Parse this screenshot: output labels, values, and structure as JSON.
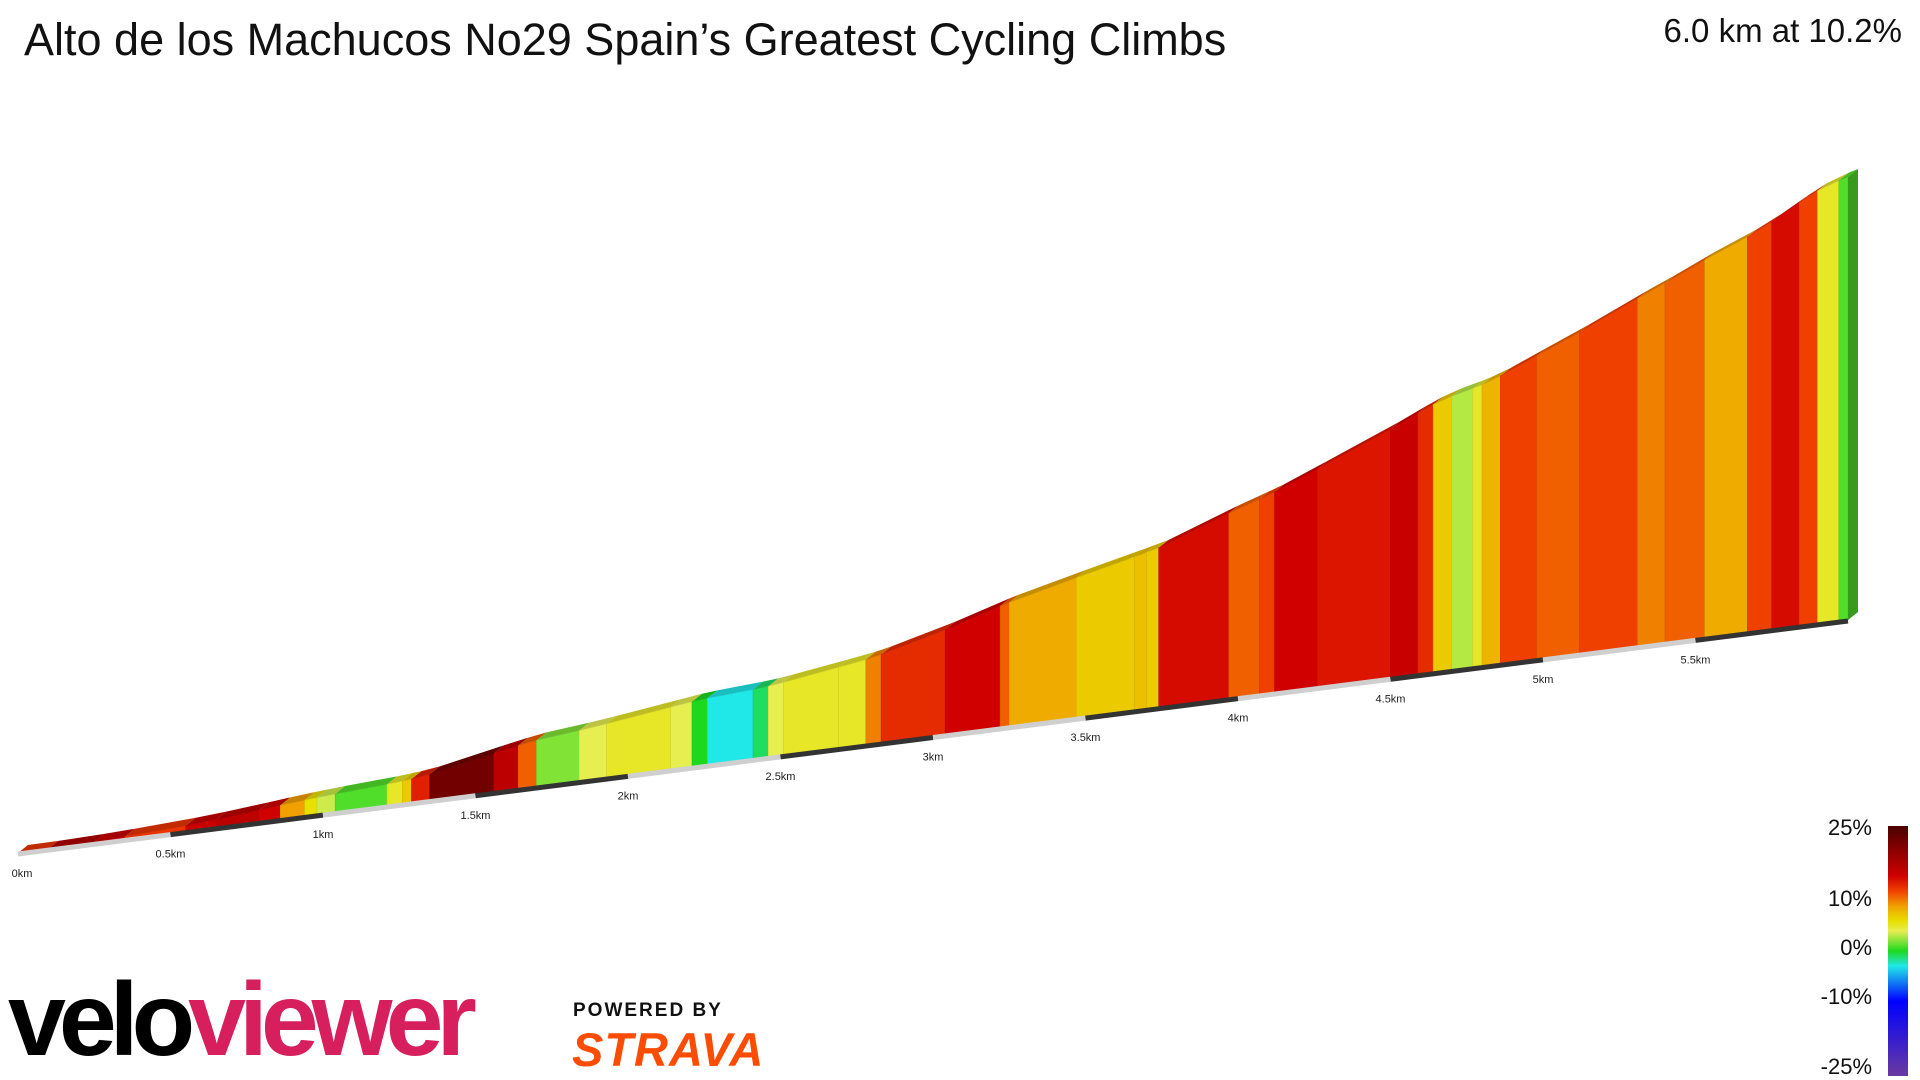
{
  "header": {
    "title": "Alto de los Machucos No29 Spain’s Greatest Cycling Climbs",
    "summary": "6.0 km at 10.2%"
  },
  "chart_data": {
    "type": "area",
    "title": "Alto de los Machucos No29 Spain’s Greatest Cycling Climbs",
    "xlabel": "",
    "ylabel": "",
    "x_unit": "km",
    "distance_km": 6.0,
    "avg_gradient_pct": 10.2,
    "xlim": [
      0,
      6.0
    ],
    "x_ticks": [
      "0km",
      "0.5km",
      "1km",
      "1.5km",
      "2km",
      "2.5km",
      "3km",
      "3.5km",
      "4km",
      "4.5km",
      "5km",
      "5.5km"
    ],
    "segments": [
      {
        "start": 0.0,
        "end": 0.1,
        "gradient": 12.5
      },
      {
        "start": 0.1,
        "end": 0.25,
        "gradient": 17.5
      },
      {
        "start": 0.25,
        "end": 0.35,
        "gradient": 15.5
      },
      {
        "start": 0.35,
        "end": 0.55,
        "gradient": 12.5
      },
      {
        "start": 0.55,
        "end": 0.65,
        "gradient": 15.5
      },
      {
        "start": 0.65,
        "end": 0.79,
        "gradient": 16.5
      },
      {
        "start": 0.79,
        "end": 0.86,
        "gradient": 15.0
      },
      {
        "start": 0.86,
        "end": 0.94,
        "gradient": 9.0
      },
      {
        "start": 0.94,
        "end": 0.98,
        "gradient": 6.0
      },
      {
        "start": 0.98,
        "end": 1.04,
        "gradient": 3.5
      },
      {
        "start": 1.04,
        "end": 1.21,
        "gradient": 1.0
      },
      {
        "start": 1.21,
        "end": 1.26,
        "gradient": 5.0
      },
      {
        "start": 1.26,
        "end": 1.29,
        "gradient": 7.0
      },
      {
        "start": 1.29,
        "end": 1.35,
        "gradient": 13.5
      },
      {
        "start": 1.35,
        "end": 1.56,
        "gradient": 22.0
      },
      {
        "start": 1.56,
        "end": 1.64,
        "gradient": 16.5
      },
      {
        "start": 1.64,
        "end": 1.7,
        "gradient": 11.0
      },
      {
        "start": 1.7,
        "end": 1.84,
        "gradient": 2.0
      },
      {
        "start": 1.84,
        "end": 1.93,
        "gradient": 4.0
      },
      {
        "start": 1.93,
        "end": 2.14,
        "gradient": 5.0
      },
      {
        "start": 2.14,
        "end": 2.21,
        "gradient": 4.0
      },
      {
        "start": 2.21,
        "end": 2.26,
        "gradient": 0.0
      },
      {
        "start": 2.26,
        "end": 2.41,
        "gradient": -3.0
      },
      {
        "start": 2.41,
        "end": 2.46,
        "gradient": -1.0
      },
      {
        "start": 2.46,
        "end": 2.51,
        "gradient": 4.0
      },
      {
        "start": 2.51,
        "end": 2.69,
        "gradient": 5.0
      },
      {
        "start": 2.69,
        "end": 2.78,
        "gradient": 5.0
      },
      {
        "start": 2.78,
        "end": 2.83,
        "gradient": 10.0
      },
      {
        "start": 2.83,
        "end": 3.04,
        "gradient": 13.0
      },
      {
        "start": 3.04,
        "end": 3.22,
        "gradient": 15.0
      },
      {
        "start": 3.22,
        "end": 3.25,
        "gradient": 11.0
      },
      {
        "start": 3.25,
        "end": 3.47,
        "gradient": 8.5
      },
      {
        "start": 3.47,
        "end": 3.66,
        "gradient": 7.0
      },
      {
        "start": 3.66,
        "end": 3.7,
        "gradient": 7.5
      },
      {
        "start": 3.7,
        "end": 3.74,
        "gradient": 7.0
      },
      {
        "start": 3.74,
        "end": 3.97,
        "gradient": 14.5
      },
      {
        "start": 3.97,
        "end": 4.07,
        "gradient": 11.0
      },
      {
        "start": 4.07,
        "end": 4.12,
        "gradient": 12.0
      },
      {
        "start": 4.12,
        "end": 4.26,
        "gradient": 15.0
      },
      {
        "start": 4.26,
        "end": 4.5,
        "gradient": 14.0
      },
      {
        "start": 4.5,
        "end": 4.59,
        "gradient": 15.5
      },
      {
        "start": 4.59,
        "end": 4.64,
        "gradient": 13.0
      },
      {
        "start": 4.64,
        "end": 4.7,
        "gradient": 7.0
      },
      {
        "start": 4.7,
        "end": 4.77,
        "gradient": 3.0
      },
      {
        "start": 4.77,
        "end": 4.8,
        "gradient": 5.0
      },
      {
        "start": 4.8,
        "end": 4.86,
        "gradient": 8.0
      },
      {
        "start": 4.86,
        "end": 4.98,
        "gradient": 12.0
      },
      {
        "start": 4.98,
        "end": 5.12,
        "gradient": 11.0
      },
      {
        "start": 5.12,
        "end": 5.31,
        "gradient": 12.0
      },
      {
        "start": 5.31,
        "end": 5.4,
        "gradient": 10.0
      },
      {
        "start": 5.4,
        "end": 5.53,
        "gradient": 11.0
      },
      {
        "start": 5.53,
        "end": 5.67,
        "gradient": 8.5
      },
      {
        "start": 5.67,
        "end": 5.75,
        "gradient": 12.0
      },
      {
        "start": 5.75,
        "end": 5.84,
        "gradient": 14.5
      },
      {
        "start": 5.84,
        "end": 5.9,
        "gradient": 12.0
      },
      {
        "start": 5.9,
        "end": 5.97,
        "gradient": 5.0
      },
      {
        "start": 5.97,
        "end": 6.0,
        "gradient": 1.0
      }
    ],
    "color_scale": {
      "labels": [
        "25%",
        "10%",
        "0%",
        "-10%",
        "-25%"
      ],
      "stops": [
        {
          "gradient": 25,
          "color": "#4a0000"
        },
        {
          "gradient": 15,
          "color": "#d00000"
        },
        {
          "gradient": 12,
          "color": "#f04000"
        },
        {
          "gradient": 9,
          "color": "#f0a000"
        },
        {
          "gradient": 6,
          "color": "#e8e000"
        },
        {
          "gradient": 4,
          "color": "#e6ee50"
        },
        {
          "gradient": 0,
          "color": "#1ed81e"
        },
        {
          "gradient": -3,
          "color": "#20e8e8"
        },
        {
          "gradient": -10,
          "color": "#0000ff"
        },
        {
          "gradient": -25,
          "color": "#6a3aa0"
        }
      ]
    }
  },
  "branding": {
    "logo_head": "velo",
    "logo_tail": "viewer",
    "powered_by": "POWERED BY",
    "strava": "STRAVA"
  }
}
